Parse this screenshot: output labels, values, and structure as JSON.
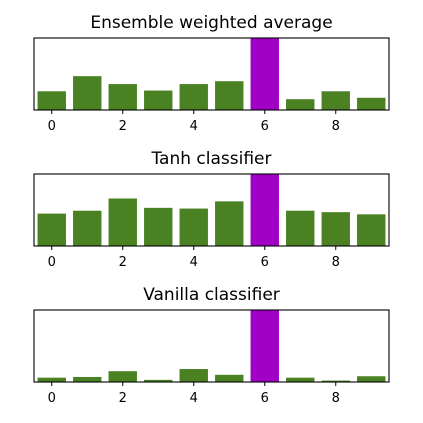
{
  "colors": {
    "default_bar": "#4a8123",
    "highlight_bar": "#a100c6",
    "axes": "#000000",
    "background": "#ffffff"
  },
  "chart_data": [
    {
      "type": "bar",
      "title": "Ensemble weighted average",
      "categories": [
        0,
        1,
        2,
        3,
        4,
        5,
        6,
        7,
        8,
        9
      ],
      "values": [
        0.26,
        0.47,
        0.36,
        0.27,
        0.36,
        0.4,
        1.0,
        0.15,
        0.26,
        0.17
      ],
      "highlight_index": 6,
      "xticks": [
        0,
        2,
        4,
        6,
        8
      ],
      "xlim": [
        -0.5,
        9.5
      ],
      "ylim": [
        0,
        1.0
      ],
      "yticks_visible": false,
      "grid": false,
      "legend": "none"
    },
    {
      "type": "bar",
      "title": "Tanh classifier",
      "categories": [
        0,
        1,
        2,
        3,
        4,
        5,
        6,
        7,
        8,
        9
      ],
      "values": [
        0.45,
        0.49,
        0.66,
        0.53,
        0.52,
        0.62,
        1.0,
        0.49,
        0.47,
        0.44
      ],
      "highlight_index": 6,
      "xticks": [
        0,
        2,
        4,
        6,
        8
      ],
      "xlim": [
        -0.5,
        9.5
      ],
      "ylim": [
        0,
        1.0
      ],
      "yticks_visible": false,
      "grid": false,
      "legend": "none"
    },
    {
      "type": "bar",
      "title": "Vanilla classifier",
      "categories": [
        0,
        1,
        2,
        3,
        4,
        5,
        6,
        7,
        8,
        9
      ],
      "values": [
        0.06,
        0.07,
        0.15,
        0.03,
        0.18,
        0.1,
        1.0,
        0.06,
        0.02,
        0.08
      ],
      "highlight_index": 6,
      "xticks": [
        0,
        2,
        4,
        6,
        8
      ],
      "xlim": [
        -0.5,
        9.5
      ],
      "ylim": [
        0,
        1.0
      ],
      "yticks_visible": false,
      "grid": false,
      "legend": "none"
    }
  ]
}
